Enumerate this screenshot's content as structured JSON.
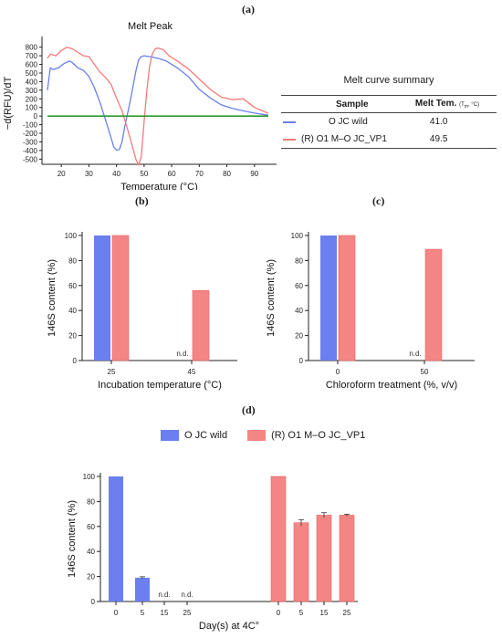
{
  "panel_labels": {
    "a": "(a)",
    "b": "(b)",
    "c": "(c)",
    "d": "(d)"
  },
  "colors": {
    "wild": "#6b7fee",
    "mutant": "#f47b7b",
    "mutant_fill": "#f48585",
    "baseline": "#2e9a2e"
  },
  "series_names": {
    "wild": "O JC wild",
    "mutant": "(R) O1 M–O JC_VP1"
  },
  "summary": {
    "title": "Melt curve summary",
    "col_sample": "Sample",
    "col_temp": "Melt Tem.",
    "col_temp_unit": "(T",
    "col_temp_sub": "m",
    "col_temp_unit_end": ", °C)",
    "rows": [
      {
        "sample": "O JC wild",
        "temp": "41.0"
      },
      {
        "sample": "(R) O1 M–O JC_VP1",
        "temp": "49.5"
      }
    ]
  },
  "nd_label": "n.d.",
  "chart_data": [
    {
      "id": "a",
      "type": "line",
      "title": "Melt Peak",
      "xlabel": "Temperature (°C)",
      "ylabel": "−d(RFU)/dT",
      "xlim": [
        13,
        98
      ],
      "ylim": [
        -560,
        860
      ],
      "xticks": [
        20,
        30,
        40,
        50,
        60,
        70,
        80,
        90
      ],
      "yticks": [
        -500,
        -400,
        -300,
        -200,
        -100,
        0,
        100,
        200,
        300,
        400,
        500,
        600,
        700,
        800
      ],
      "grid": false,
      "series": [
        {
          "name": "O JC wild",
          "x": [
            15,
            16,
            17,
            19,
            21,
            23,
            24,
            26,
            28,
            30,
            32,
            34,
            36,
            38,
            39,
            40,
            41,
            42,
            43,
            45,
            47,
            48,
            49,
            50,
            51,
            52,
            55,
            58,
            62,
            66,
            70,
            74,
            78,
            82,
            86,
            90,
            93,
            95
          ],
          "y": [
            300,
            560,
            540,
            560,
            610,
            640,
            620,
            560,
            530,
            460,
            330,
            160,
            -40,
            -250,
            -360,
            -395,
            -390,
            -300,
            -120,
            180,
            520,
            650,
            690,
            700,
            695,
            690,
            670,
            640,
            560,
            460,
            310,
            210,
            130,
            90,
            60,
            35,
            20,
            10
          ]
        },
        {
          "name": "(R) O1 M–O JC_VP1",
          "x": [
            15,
            16,
            18,
            20,
            22,
            24,
            26,
            28,
            30,
            32,
            34,
            36,
            38,
            40,
            42,
            44,
            46,
            47,
            48,
            49,
            50,
            51,
            52,
            53,
            54,
            55,
            57,
            59,
            62,
            66,
            70,
            74,
            78,
            82,
            86,
            90,
            93,
            95
          ],
          "y": [
            670,
            720,
            700,
            760,
            800,
            780,
            740,
            700,
            690,
            600,
            510,
            450,
            370,
            210,
            60,
            -150,
            -380,
            -500,
            -570,
            -470,
            -60,
            300,
            580,
            720,
            780,
            790,
            770,
            700,
            640,
            550,
            430,
            310,
            220,
            190,
            200,
            100,
            60,
            30
          ]
        },
        {
          "name": "baseline",
          "x": [
            15,
            95
          ],
          "y": [
            0,
            0
          ]
        }
      ]
    },
    {
      "id": "b",
      "type": "bar",
      "categories": [
        "25",
        "45"
      ],
      "xlabel": "Incubation temperature (°C)",
      "ylabel": "146S content (%)",
      "ylim": [
        0,
        100
      ],
      "yticks": [
        0,
        20,
        40,
        60,
        80,
        100
      ],
      "series": [
        {
          "name": "O JC wild",
          "values": [
            100,
            null
          ]
        },
        {
          "name": "(R) O1 M–O JC_VP1",
          "values": [
            100,
            56
          ]
        }
      ]
    },
    {
      "id": "c",
      "type": "bar",
      "categories": [
        "0",
        "50"
      ],
      "xlabel": "Chloroform treatment (%, v/v)",
      "ylabel": "146S content (%)",
      "ylim": [
        0,
        100
      ],
      "yticks": [
        0,
        20,
        40,
        60,
        80,
        100
      ],
      "series": [
        {
          "name": "O JC wild",
          "values": [
            100,
            null
          ]
        },
        {
          "name": "(R) O1 M–O JC_VP1",
          "values": [
            100,
            89
          ]
        }
      ]
    },
    {
      "id": "d",
      "type": "bar",
      "categories": [
        "0",
        "5",
        "15",
        "25"
      ],
      "xlabel": "Day(s) at 4C°",
      "ylabel": "146S content (%)",
      "ylim": [
        0,
        100
      ],
      "yticks": [
        0,
        20,
        40,
        60,
        80,
        100
      ],
      "legend": "top",
      "series": [
        {
          "name": "O JC wild",
          "values": [
            100,
            19,
            null,
            null
          ],
          "errors": [
            0,
            0.8,
            0,
            0
          ]
        },
        {
          "name": "(R) O1 M–O JC_VP1",
          "values": [
            100,
            63,
            69,
            69
          ],
          "errors": [
            0,
            2.5,
            2,
            0.8
          ]
        }
      ]
    }
  ]
}
